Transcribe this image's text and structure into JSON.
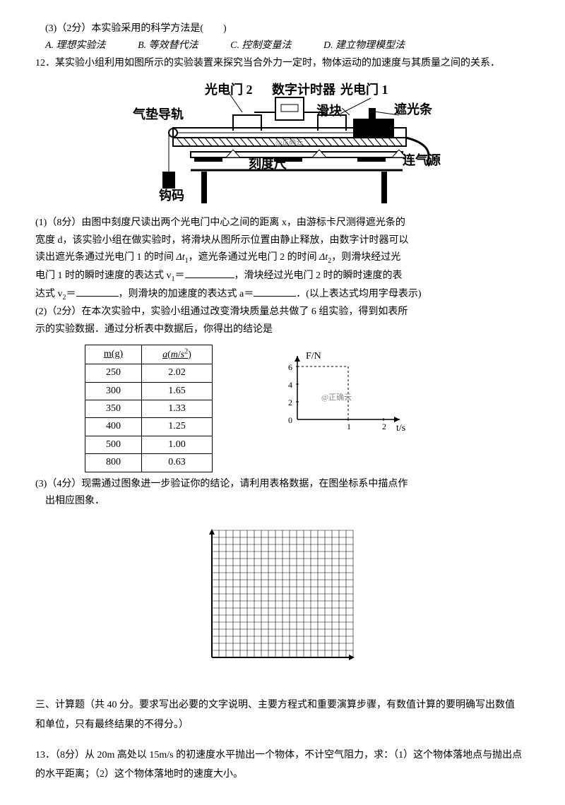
{
  "q11_sub3": {
    "prompt": "(3)（2分）本实验采用的科学方法是(　　)",
    "options": {
      "A": "A. 理想实验法",
      "B": "B. 等效替代法",
      "C": "C. 控制变量法",
      "D": "D. 建立物理模型法"
    }
  },
  "q12": {
    "intro": "12．某实验小组利用如图所示的实验装置来探究当合外力一定时，物体运动的加速度与其质量之间的关系．",
    "diagram1": {
      "labels": {
        "air_track": "气垫导轨",
        "gate2": "光电门 2",
        "timer": "数字计时器",
        "gate1": "光电门 1",
        "slider": "滑块",
        "flag": "遮光条",
        "ruler": "刻度尺",
        "mass": "钩码",
        "air_src": "连气源"
      },
      "colors": {
        "outline": "#000000",
        "slider_fill": "#000000"
      }
    },
    "sub1": {
      "l1": "(1)（8分）由图中刻度尺读出两个光电门中心之间的距离 x，由游标卡尺测得遮光条的",
      "l2": "宽度 d，该实验小组在做实验时，将滑块从图所示位置由静止释放，由数字计时器可以",
      "l3_a": "读出遮光条通过光电门 1 的时间 ",
      "l3_b": "Δt",
      "l3_b_sub": "1",
      "l3_c": "，遮光条通过光电门 2 的时间 ",
      "l3_d": "Δt",
      "l3_d_sub": "2",
      "l3_e": "，则滑块经过光",
      "l4_a": "电门 1 时的瞬时速度的表达式 v",
      "l4_a_sub": "1",
      "l4_b": "＝",
      "l4_c": "，滑块经过光电门 2 时的瞬时速度的表",
      "l5_a": "达式 v",
      "l5_a_sub": "2",
      "l5_b": "＝",
      "l5_c": "，则滑块的加速度的表达式 a＝",
      "l5_d": "．(以上表达式均用字母表示)"
    },
    "sub2": {
      "l1": "(2)（2分）在本次实验中，实验小组通过改变滑块质量总共做了 6 组实验，得到如表所",
      "l2": "示的实验数据．通过分析表中数据后，你得出的结论是"
    },
    "table": {
      "cols": [
        "m(g)",
        "a(m/s²)"
      ],
      "rows": [
        [
          "250",
          "2.02"
        ],
        [
          "300",
          "1.65"
        ],
        [
          "350",
          "1.33"
        ],
        [
          "400",
          "1.25"
        ],
        [
          "500",
          "1.00"
        ],
        [
          "800",
          "0.63"
        ]
      ]
    },
    "chart": {
      "ylabel": "F/N",
      "xlabel": "t/s",
      "yticks": [
        "0",
        "2",
        "4",
        "6"
      ],
      "xticks": [
        "",
        "1",
        "2"
      ],
      "watermark": "@正确云",
      "axis_color": "#000000",
      "line_color": "#000000"
    },
    "sub3": {
      "l1": "(3)（4分）现需通过图象进一步验证你的结论，请利用表格数据，在图坐标系中描点作",
      "l2": "出相应图象．"
    },
    "grid": {
      "cols": 20,
      "rows": 18,
      "line_color": "#000000"
    }
  },
  "section3": "三、计算题（共 40 分。要求写出必要的文字说明、主要方程式和重要演算步骤，有数值计算的要明确写出数值和单位，只有最终结果的不得分。）",
  "q13": "13．（8分）从 20m 高处以 15m/s 的初速度水平抛出一个物体，不计空气阻力，求：（1）这个物体落地点与抛出点的水平距离；（2）这个物体落地时的速度大小。"
}
